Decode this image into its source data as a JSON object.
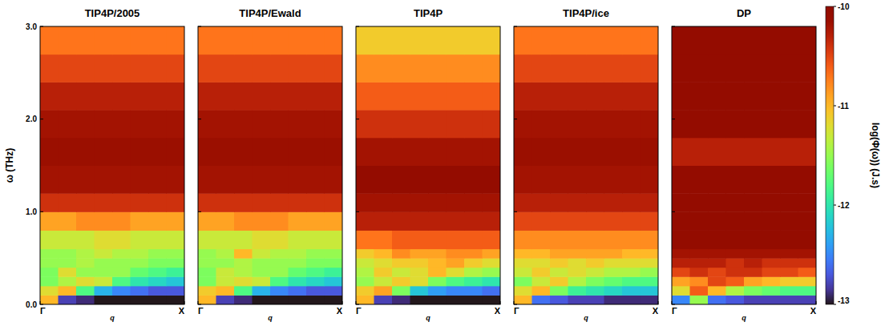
{
  "chart_data": [
    {
      "type": "heatmap",
      "title": "TIP4P/2005",
      "xlabel": "q",
      "ylabel": "ω (THz)",
      "xlim": [
        0,
        1
      ],
      "xticks": [
        {
          "value": 0,
          "label": "Γ"
        },
        {
          "value": 1,
          "label": "X"
        }
      ],
      "ylim": [
        0,
        3
      ],
      "yticks": [
        {
          "value": 0,
          "label": "0.0"
        },
        {
          "value": 1,
          "label": "1.0"
        },
        {
          "value": 2,
          "label": "2.0"
        },
        {
          "value": 3,
          "label": "3.0"
        }
      ],
      "x_edges": [
        0,
        0.125,
        0.25,
        0.375,
        0.5,
        0.625,
        0.75,
        0.875,
        1
      ],
      "y_edges": [
        0,
        0.1,
        0.2,
        0.3,
        0.4,
        0.5,
        0.6,
        0.8,
        1.0,
        1.2,
        1.5,
        1.8,
        2.1,
        2.4,
        2.7,
        3.0
      ],
      "values": [
        [
          -11.0,
          -12.8,
          -12.9,
          -13.0,
          -13.0,
          -13.0,
          -13.0,
          -13.0
        ],
        [
          -11.2,
          -11.0,
          -11.8,
          -12.3,
          -12.5,
          -12.6,
          -12.7,
          -12.7
        ],
        [
          -11.6,
          -11.4,
          -11.2,
          -11.3,
          -11.8,
          -12.0,
          -12.1,
          -12.2
        ],
        [
          -11.6,
          -11.2,
          -11.5,
          -11.5,
          -11.5,
          -11.7,
          -11.8,
          -11.9
        ],
        [
          -11.5,
          -11.5,
          -11.4,
          -11.5,
          -11.5,
          -11.5,
          -11.6,
          -11.6
        ],
        [
          -11.5,
          -11.5,
          -11.4,
          -11.3,
          -11.4,
          -11.4,
          -11.5,
          -11.5
        ],
        [
          -11.3,
          -11.3,
          -11.3,
          -11.2,
          -11.2,
          -11.3,
          -11.3,
          -11.3
        ],
        [
          -10.9,
          -10.9,
          -10.8,
          -10.8,
          -10.8,
          -10.9,
          -10.9,
          -10.9
        ],
        [
          -10.4,
          -10.4,
          -10.4,
          -10.4,
          -10.4,
          -10.4,
          -10.4,
          -10.4
        ],
        [
          -10.2,
          -10.2,
          -10.2,
          -10.2,
          -10.2,
          -10.2,
          -10.2,
          -10.2
        ],
        [
          -10.15,
          -10.15,
          -10.15,
          -10.15,
          -10.15,
          -10.15,
          -10.15,
          -10.15
        ],
        [
          -10.2,
          -10.2,
          -10.2,
          -10.2,
          -10.2,
          -10.2,
          -10.2,
          -10.2
        ],
        [
          -10.3,
          -10.3,
          -10.3,
          -10.3,
          -10.3,
          -10.3,
          -10.3,
          -10.3
        ],
        [
          -10.5,
          -10.5,
          -10.5,
          -10.5,
          -10.5,
          -10.5,
          -10.5,
          -10.5
        ],
        [
          -10.7,
          -10.7,
          -10.7,
          -10.7,
          -10.7,
          -10.7,
          -10.7,
          -10.7
        ]
      ]
    },
    {
      "type": "heatmap",
      "title": "TIP4P/Ewald",
      "xlabel": "q",
      "tick_labels": "x",
      "xlim": [
        0,
        1
      ],
      "xticks": [
        {
          "value": 0,
          "label": "Γ"
        },
        {
          "value": 1,
          "label": "X"
        }
      ],
      "ylim": [
        0,
        3
      ],
      "yticks": [
        0,
        1,
        2,
        3
      ],
      "x_edges": [
        0,
        0.125,
        0.25,
        0.375,
        0.5,
        0.625,
        0.75,
        0.875,
        1
      ],
      "y_edges": [
        0,
        0.1,
        0.2,
        0.3,
        0.4,
        0.5,
        0.6,
        0.8,
        1.0,
        1.2,
        1.5,
        1.8,
        2.1,
        2.4,
        2.7,
        3.0
      ],
      "values": [
        [
          -11.0,
          -12.8,
          -12.9,
          -13.0,
          -13.0,
          -13.0,
          -13.0,
          -13.0
        ],
        [
          -11.1,
          -11.0,
          -11.8,
          -12.3,
          -12.5,
          -12.6,
          -12.7,
          -12.7
        ],
        [
          -11.6,
          -11.3,
          -11.2,
          -11.3,
          -11.8,
          -12.0,
          -12.1,
          -12.2
        ],
        [
          -11.6,
          -11.3,
          -11.4,
          -11.5,
          -11.5,
          -11.7,
          -11.8,
          -11.9
        ],
        [
          -11.5,
          -11.5,
          -11.4,
          -11.5,
          -11.5,
          -11.5,
          -11.6,
          -11.6
        ],
        [
          -11.5,
          -11.4,
          -11.0,
          -11.3,
          -11.4,
          -11.4,
          -11.5,
          -11.5
        ],
        [
          -11.3,
          -11.3,
          -11.3,
          -11.2,
          -11.2,
          -11.3,
          -11.3,
          -11.3
        ],
        [
          -10.9,
          -10.9,
          -10.8,
          -10.8,
          -10.8,
          -10.9,
          -10.9,
          -10.9
        ],
        [
          -10.4,
          -10.4,
          -10.4,
          -10.4,
          -10.4,
          -10.4,
          -10.4,
          -10.4
        ],
        [
          -10.2,
          -10.2,
          -10.2,
          -10.2,
          -10.2,
          -10.2,
          -10.2,
          -10.2
        ],
        [
          -10.15,
          -10.15,
          -10.15,
          -10.15,
          -10.15,
          -10.15,
          -10.15,
          -10.15
        ],
        [
          -10.2,
          -10.2,
          -10.2,
          -10.2,
          -10.2,
          -10.2,
          -10.2,
          -10.2
        ],
        [
          -10.3,
          -10.3,
          -10.3,
          -10.3,
          -10.3,
          -10.3,
          -10.3,
          -10.3
        ],
        [
          -10.5,
          -10.5,
          -10.5,
          -10.5,
          -10.5,
          -10.5,
          -10.5,
          -10.5
        ],
        [
          -10.7,
          -10.7,
          -10.7,
          -10.7,
          -10.7,
          -10.7,
          -10.7,
          -10.7
        ]
      ]
    },
    {
      "type": "heatmap",
      "title": "TIP4P",
      "xlabel": "q",
      "tick_labels": "x",
      "xlim": [
        0,
        1
      ],
      "xticks": [
        {
          "value": 0,
          "label": "Γ"
        },
        {
          "value": 1,
          "label": "X"
        }
      ],
      "ylim": [
        0,
        3
      ],
      "yticks": [
        0,
        1,
        2,
        3
      ],
      "x_edges": [
        0,
        0.125,
        0.25,
        0.375,
        0.5,
        0.625,
        0.75,
        0.875,
        1
      ],
      "y_edges": [
        0,
        0.1,
        0.2,
        0.3,
        0.4,
        0.5,
        0.6,
        0.8,
        1.0,
        1.2,
        1.5,
        1.8,
        2.1,
        2.4,
        2.7,
        3.0
      ],
      "values": [
        [
          -11.0,
          -12.8,
          -12.9,
          -13.0,
          -13.0,
          -13.0,
          -13.0,
          -13.0
        ],
        [
          -11.1,
          -10.9,
          -11.6,
          -12.2,
          -12.4,
          -12.5,
          -12.5,
          -12.6
        ],
        [
          -11.5,
          -11.3,
          -11.1,
          -11.2,
          -11.6,
          -11.8,
          -11.9,
          -12.0
        ],
        [
          -11.4,
          -11.1,
          -11.3,
          -11.2,
          -11.0,
          -11.2,
          -11.4,
          -11.5
        ],
        [
          -11.3,
          -11.2,
          -11.1,
          -11.1,
          -11.0,
          -10.9,
          -11.1,
          -11.2
        ],
        [
          -11.1,
          -11.0,
          -10.8,
          -10.9,
          -10.9,
          -10.8,
          -10.8,
          -10.9
        ],
        [
          -10.7,
          -10.7,
          -10.6,
          -10.6,
          -10.6,
          -10.6,
          -10.6,
          -10.6
        ],
        [
          -10.3,
          -10.3,
          -10.3,
          -10.3,
          -10.3,
          -10.3,
          -10.3,
          -10.3
        ],
        [
          -10.2,
          -10.2,
          -10.2,
          -10.2,
          -10.2,
          -10.2,
          -10.2,
          -10.2
        ],
        [
          -10.1,
          -10.1,
          -10.1,
          -10.1,
          -10.1,
          -10.1,
          -10.1,
          -10.1
        ],
        [
          -10.2,
          -10.2,
          -10.2,
          -10.2,
          -10.2,
          -10.2,
          -10.2,
          -10.2
        ],
        [
          -10.4,
          -10.4,
          -10.4,
          -10.4,
          -10.4,
          -10.4,
          -10.4,
          -10.4
        ],
        [
          -10.6,
          -10.6,
          -10.6,
          -10.6,
          -10.6,
          -10.6,
          -10.6,
          -10.6
        ],
        [
          -10.8,
          -10.8,
          -10.8,
          -10.8,
          -10.8,
          -10.8,
          -10.8,
          -10.8
        ],
        [
          -11.1,
          -11.1,
          -11.1,
          -11.1,
          -11.1,
          -11.1,
          -11.1,
          -11.1
        ]
      ]
    },
    {
      "type": "heatmap",
      "title": "TIP4P/ice",
      "xlabel": "q",
      "tick_labels": "x",
      "xlim": [
        0,
        1
      ],
      "xticks": [
        {
          "value": 0,
          "label": "Γ"
        },
        {
          "value": 1,
          "label": "X"
        }
      ],
      "ylim": [
        0,
        3
      ],
      "yticks": [
        0,
        1,
        2,
        3
      ],
      "x_edges": [
        0,
        0.125,
        0.25,
        0.375,
        0.5,
        0.625,
        0.75,
        0.875,
        1
      ],
      "y_edges": [
        0,
        0.1,
        0.2,
        0.3,
        0.4,
        0.5,
        0.6,
        0.8,
        1.0,
        1.2,
        1.5,
        1.8,
        2.1,
        2.4,
        2.7,
        3.0
      ],
      "values": [
        [
          -11.0,
          -12.6,
          -12.7,
          -12.8,
          -12.8,
          -12.9,
          -12.9,
          -12.9
        ],
        [
          -11.2,
          -11.0,
          -11.6,
          -11.9,
          -12.0,
          -12.1,
          -12.2,
          -12.2
        ],
        [
          -11.6,
          -11.3,
          -11.1,
          -11.4,
          -11.6,
          -11.7,
          -11.8,
          -11.8
        ],
        [
          -11.3,
          -11.1,
          -11.3,
          -11.2,
          -11.3,
          -11.4,
          -11.4,
          -11.5
        ],
        [
          -11.2,
          -11.2,
          -11.1,
          -11.2,
          -11.1,
          -11.2,
          -11.2,
          -11.2
        ],
        [
          -11.0,
          -11.0,
          -10.9,
          -10.9,
          -10.9,
          -10.9,
          -11.0,
          -11.0
        ],
        [
          -10.8,
          -10.8,
          -10.8,
          -10.8,
          -10.8,
          -10.8,
          -10.8,
          -10.8
        ],
        [
          -10.5,
          -10.5,
          -10.5,
          -10.5,
          -10.5,
          -10.5,
          -10.5,
          -10.5
        ],
        [
          -10.3,
          -10.3,
          -10.3,
          -10.3,
          -10.3,
          -10.3,
          -10.3,
          -10.3
        ],
        [
          -10.2,
          -10.2,
          -10.2,
          -10.2,
          -10.2,
          -10.2,
          -10.2,
          -10.2
        ],
        [
          -10.15,
          -10.15,
          -10.15,
          -10.15,
          -10.15,
          -10.15,
          -10.15,
          -10.15
        ],
        [
          -10.2,
          -10.2,
          -10.2,
          -10.2,
          -10.2,
          -10.2,
          -10.2,
          -10.2
        ],
        [
          -10.3,
          -10.3,
          -10.3,
          -10.3,
          -10.3,
          -10.3,
          -10.3,
          -10.3
        ],
        [
          -10.5,
          -10.5,
          -10.5,
          -10.5,
          -10.5,
          -10.5,
          -10.5,
          -10.5
        ],
        [
          -10.7,
          -10.7,
          -10.7,
          -10.7,
          -10.7,
          -10.7,
          -10.7,
          -10.7
        ]
      ]
    },
    {
      "type": "heatmap",
      "title": "DP",
      "xlabel": "q",
      "tick_labels": "x",
      "xlim": [
        0,
        1
      ],
      "xticks": [
        {
          "value": 0,
          "label": "Γ"
        },
        {
          "value": 1,
          "label": "X"
        }
      ],
      "ylim": [
        0,
        3
      ],
      "yticks": [
        0,
        1,
        2,
        3
      ],
      "x_edges": [
        0,
        0.125,
        0.25,
        0.375,
        0.5,
        0.625,
        0.75,
        0.875,
        1
      ],
      "y_edges": [
        0,
        0.1,
        0.2,
        0.3,
        0.4,
        0.5,
        0.6,
        0.8,
        1.0,
        1.2,
        1.5,
        1.8,
        2.1,
        2.4,
        2.7,
        3.0
      ],
      "values": [
        [
          -12.5,
          -11.5,
          -12.6,
          -12.7,
          -12.8,
          -12.8,
          -12.8,
          -12.8
        ],
        [
          -11.2,
          -10.6,
          -11.0,
          -11.4,
          -11.6,
          -11.7,
          -11.8,
          -11.8
        ],
        [
          -10.9,
          -10.8,
          -10.5,
          -10.6,
          -10.9,
          -11.0,
          -11.1,
          -11.1
        ],
        [
          -10.5,
          -10.4,
          -10.5,
          -10.4,
          -10.4,
          -10.5,
          -10.5,
          -10.6
        ],
        [
          -10.3,
          -10.3,
          -10.3,
          -10.4,
          -10.3,
          -10.4,
          -10.4,
          -10.4
        ],
        [
          -10.2,
          -10.2,
          -10.2,
          -10.2,
          -10.2,
          -10.2,
          -10.2,
          -10.2
        ],
        [
          -10.1,
          -10.1,
          -10.1,
          -10.1,
          -10.1,
          -10.1,
          -10.1,
          -10.1
        ],
        [
          -10.1,
          -10.1,
          -10.1,
          -10.1,
          -10.1,
          -10.1,
          -10.1,
          -10.1
        ],
        [
          -10.1,
          -10.1,
          -10.1,
          -10.1,
          -10.1,
          -10.1,
          -10.1,
          -10.1
        ],
        [
          -10.1,
          -10.1,
          -10.1,
          -10.1,
          -10.1,
          -10.1,
          -10.1,
          -10.1
        ],
        [
          -10.3,
          -10.3,
          -10.3,
          -10.3,
          -10.3,
          -10.3,
          -10.3,
          -10.3
        ],
        [
          -10.1,
          -10.1,
          -10.1,
          -10.1,
          -10.1,
          -10.1,
          -10.1,
          -10.1
        ],
        [
          -10.1,
          -10.1,
          -10.1,
          -10.1,
          -10.1,
          -10.1,
          -10.1,
          -10.1
        ],
        [
          -10.1,
          -10.1,
          -10.1,
          -10.1,
          -10.1,
          -10.1,
          -10.1,
          -10.1
        ],
        [
          -10.1,
          -10.1,
          -10.1,
          -10.1,
          -10.1,
          -10.1,
          -10.1,
          -10.1
        ]
      ],
      "color_range": [
        -13,
        -10
      ],
      "color_ticks": [
        -13,
        -12,
        -11,
        -10
      ],
      "color_label": "log(Φ(ω)) (J.s)"
    }
  ]
}
